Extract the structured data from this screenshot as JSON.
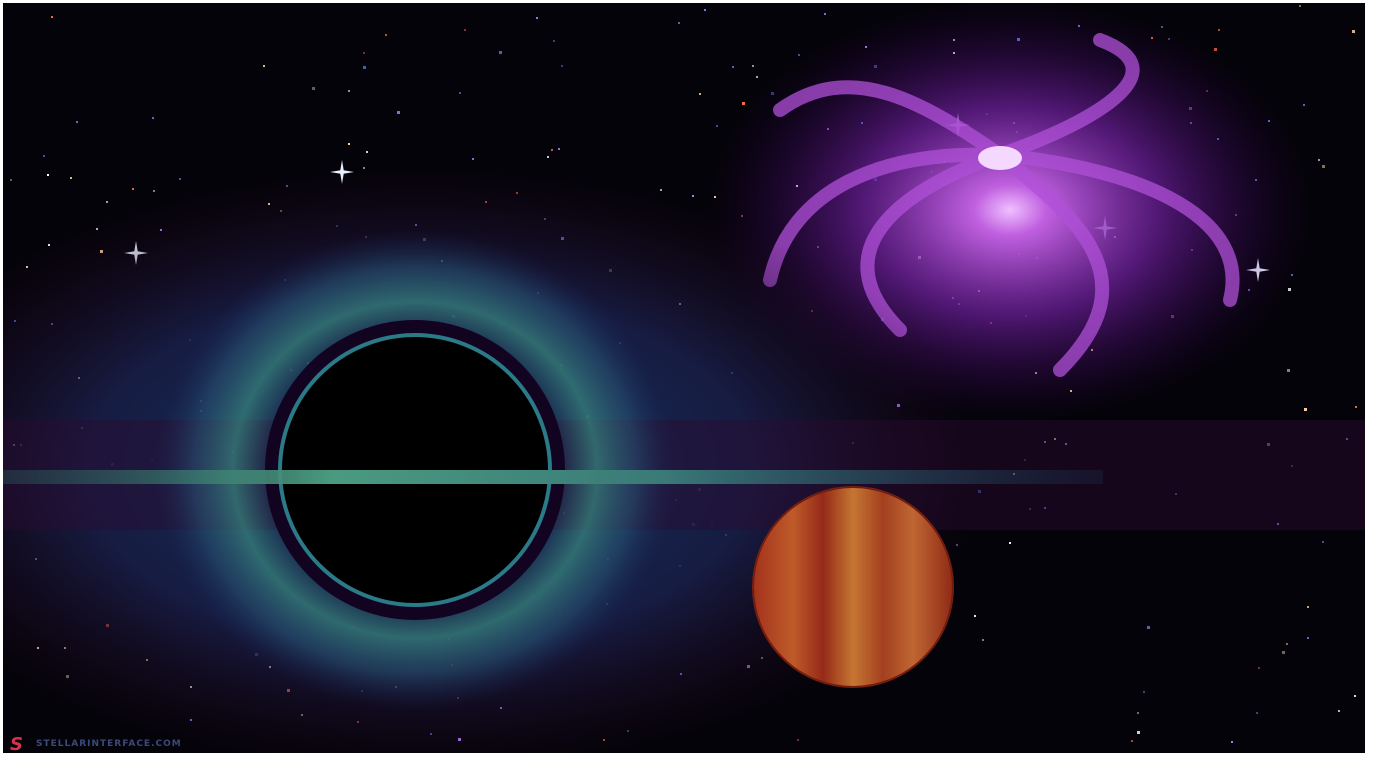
{
  "watermark": {
    "logo": "S",
    "text": "STELLARINTERFACE.COM"
  }
}
